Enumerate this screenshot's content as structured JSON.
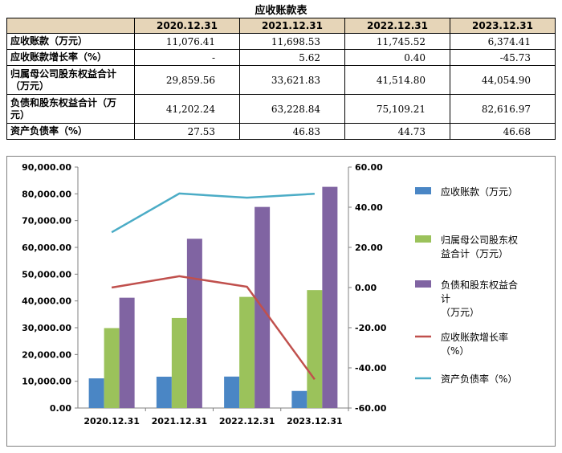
{
  "table": {
    "title": "应收账款表",
    "headers": [
      "",
      "2020.12.31",
      "2021.12.31",
      "2022.12.31",
      "2023.12.31"
    ],
    "rows": [
      {
        "label": "应收账款（万元）",
        "values": [
          "11,076.41",
          "11,698.53",
          "11,745.52",
          "6,374.41"
        ]
      },
      {
        "label": "应收账款增长率（%）",
        "values": [
          "-",
          "5.62",
          "0.40",
          "-45.73"
        ]
      },
      {
        "label": "归属母公司股东权益合计（万元）",
        "values": [
          "29,859.56",
          "33,621.83",
          "41,514.80",
          "44,054.90"
        ]
      },
      {
        "label": "负债和股东权益合计（万元）",
        "values": [
          "41,202.24",
          "63,228.84",
          "75,109.21",
          "82,616.97"
        ]
      },
      {
        "label": "资产负债率（%）",
        "values": [
          "27.53",
          "46.83",
          "44.73",
          "46.68"
        ]
      }
    ]
  },
  "chart_data": {
    "type": "bar",
    "categories": [
      "2020.12.31",
      "2021.12.31",
      "2022.12.31",
      "2023.12.31"
    ],
    "series": [
      {
        "name": "应收账款（万元）",
        "kind": "bar",
        "axis": "left",
        "color": "#4a86c5",
        "values": [
          11076.41,
          11698.53,
          11745.52,
          6374.41
        ]
      },
      {
        "name": "归属母公司股东权益合计（万元）",
        "kind": "bar",
        "axis": "left",
        "color": "#9bc25b",
        "values": [
          29859.56,
          33621.83,
          41514.8,
          44054.9
        ]
      },
      {
        "name": "负债和股东权益合计（万元）",
        "kind": "bar",
        "axis": "left",
        "color": "#8064a2",
        "values": [
          41202.24,
          63228.84,
          75109.21,
          82616.97
        ]
      },
      {
        "name": "应收账款增长率（%）",
        "kind": "line",
        "axis": "right",
        "color": "#c0504d",
        "values": [
          0,
          5.62,
          0.4,
          -45.73
        ]
      },
      {
        "name": "资产负债率（%）",
        "kind": "line",
        "axis": "right",
        "color": "#4bacc6",
        "values": [
          27.53,
          46.83,
          44.73,
          46.68
        ]
      }
    ],
    "legend_labels": [
      [
        "应收账款（万元）"
      ],
      [
        "归属母公司股东权",
        "益合计（万元）"
      ],
      [
        "负债和股东权益合",
        "计",
        "（万元）"
      ],
      [
        "应收账款增长率",
        "（%）"
      ],
      [
        "资产负债率（%）"
      ]
    ],
    "y_left": {
      "min": 0,
      "max": 90000,
      "step": 10000,
      "tick_labels": [
        "0.00",
        "10,000.00",
        "20,000.00",
        "30,000.00",
        "40,000.00",
        "50,000.00",
        "60,000.00",
        "70,000.00",
        "80,000.00",
        "90,000.00"
      ]
    },
    "y_right": {
      "min": -60,
      "max": 60,
      "step": 20,
      "tick_labels": [
        "-60.00",
        "-40.00",
        "-20.00",
        "0.00",
        "20.00",
        "40.00",
        "60.00"
      ]
    },
    "legend_position": "right",
    "grid": false
  }
}
